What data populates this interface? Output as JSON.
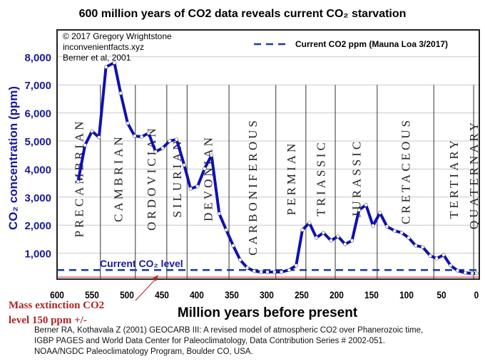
{
  "chart_data": {
    "type": "line",
    "title": "600 million years of CO2 data reveals current CO₂ starvation",
    "xlabel": "Million years before present",
    "ylabel": "CO₂ concentration (ppm)",
    "xlim": [
      600,
      0
    ],
    "ylim": [
      0,
      8000
    ],
    "x_reversed": true,
    "grid": "horizontal",
    "x_ticks": [
      600,
      550,
      500,
      450,
      400,
      350,
      300,
      250,
      200,
      150,
      100,
      50,
      0
    ],
    "x_tick_labels": [
      "600",
      "550",
      "500",
      "450",
      "400",
      "350",
      "300",
      "250",
      "200",
      "150",
      "100",
      "50",
      "0"
    ],
    "y_ticks": [
      1000,
      2000,
      3000,
      4000,
      5000,
      6000,
      7000,
      8000
    ],
    "y_tick_labels": [
      "1,000",
      "2,000",
      "3,000",
      "4,000",
      "5,000",
      "6,000",
      "7,000",
      "8,000"
    ],
    "series": [
      {
        "color": "#1010b0",
        "x": [
          570,
          560,
          550,
          540,
          530,
          518,
          509,
          499,
          489,
          479,
          469,
          459,
          449,
          439,
          429,
          418,
          409,
          399,
          389,
          379,
          368,
          358,
          348,
          338,
          328,
          318,
          308,
          299,
          289,
          279,
          268,
          258,
          249,
          239,
          229,
          219,
          208,
          198,
          188,
          178,
          168,
          158,
          148,
          138,
          128,
          117,
          107,
          97,
          87,
          77,
          66,
          57,
          47,
          37,
          27,
          16,
          6,
          0
        ],
        "y": [
          3550,
          4850,
          5350,
          5130,
          7640,
          7790,
          6700,
          5630,
          5180,
          5150,
          5280,
          4620,
          4750,
          5000,
          5050,
          4140,
          3300,
          3380,
          4010,
          4490,
          2410,
          1830,
          1270,
          760,
          480,
          360,
          330,
          330,
          330,
          330,
          400,
          560,
          1830,
          2080,
          1550,
          1730,
          1450,
          1600,
          1320,
          1450,
          2540,
          2720,
          1980,
          2440,
          1950,
          1800,
          1730,
          1550,
          1270,
          1220,
          910,
          810,
          940,
          560,
          380,
          300,
          280,
          280
        ]
      }
    ],
    "reference_line": {
      "name": "Current CO2 ppm (Mauna Loa 3/2017)",
      "value": 400,
      "style": "dashed",
      "color": "#1a3a9c",
      "label": "Current CO₂ level"
    },
    "extinction_line": {
      "value": 150,
      "color": "#b22222"
    },
    "periods": [
      {
        "name": "PRECAMBRIAN",
        "start": 600,
        "end": 538
      },
      {
        "name": "CAMBRIAN",
        "start": 538,
        "end": 488
      },
      {
        "name": "ORDOVICIAN",
        "start": 488,
        "end": 443
      },
      {
        "name": "SILURIAN",
        "start": 443,
        "end": 414
      },
      {
        "name": "DEVONIAN",
        "start": 414,
        "end": 354
      },
      {
        "name": "CARBONIFEROUS",
        "start": 354,
        "end": 287
      },
      {
        "name": "PERMIAN",
        "start": 287,
        "end": 244
      },
      {
        "name": "TRIASSIC",
        "start": 244,
        "end": 202
      },
      {
        "name": "JURASSIC",
        "start": 202,
        "end": 142
      },
      {
        "name": "CRETACEOUS",
        "start": 142,
        "end": 61
      },
      {
        "name": "TERTIARY",
        "start": 61,
        "end": 4
      },
      {
        "name": "QUATERNARY",
        "start": 4,
        "end": 0
      }
    ],
    "legend": {
      "position": "top-right",
      "label": "Current CO2 ppm (Mauna Loa 3/2017)"
    },
    "annotations": {
      "credit": [
        "© 2017 Gregory Wrightstone",
        "inconvenientfacts.xyz",
        "Berner et al, 2001"
      ],
      "extinction": [
        "Mass extinction CO2",
        "level 150 ppm +/-"
      ]
    }
  },
  "citation": [
    "Berner RA, Kothavala Z (2001) GEOCARB III: A revised model of atmospheric CO2 over Phanerozoic time,",
    "IGBP PAGES and World Data Center for Paleoclimatology, Data Contribution Series # 2002-051.",
    "NOAA/NGDC Paleoclimatology Program, Boulder CO, USA."
  ],
  "colors": {
    "line": "#1010b0",
    "axis_text": "#1a1a9c",
    "annotation": "#b22222"
  }
}
